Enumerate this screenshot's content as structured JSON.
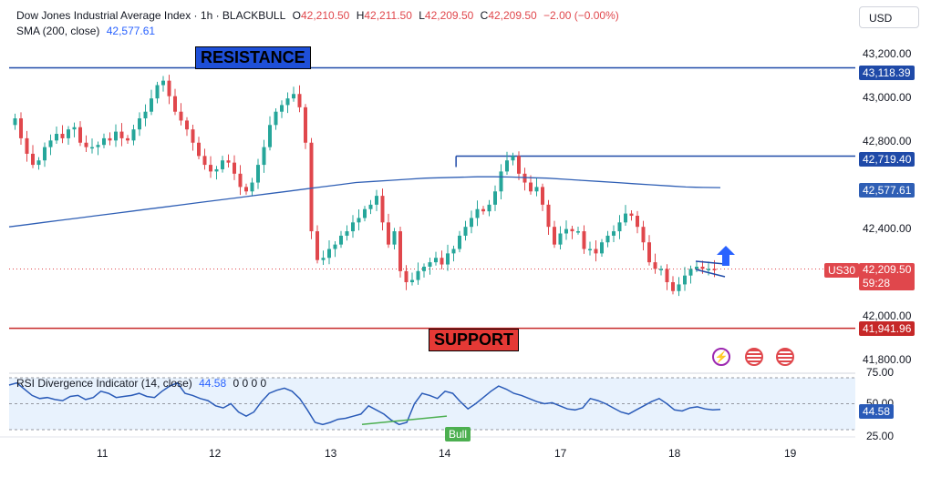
{
  "header": {
    "title": "Dow Jones Industrial Average Index · 1h · BLACKBULL",
    "o_label": "O",
    "o_value": "42,210.50",
    "h_label": "H",
    "h_value": "42,211.50",
    "l_label": "L",
    "l_value": "42,209.50",
    "c_label": "C",
    "c_value": "42,209.50",
    "change": "−2.00 (−0.00%)",
    "sma_label": "SMA (200, close)",
    "sma_value": "42,577.61"
  },
  "currency": "USD",
  "annotations": {
    "resistance": "RESISTANCE",
    "support": "SUPPORT",
    "bull": "Bull"
  },
  "price_badges": {
    "resistance": "43,118.39",
    "level_mid": "42,719.40",
    "sma": "42,577.61",
    "symbol": "US30",
    "last": "42,209.50",
    "countdown": "59:28",
    "support": "41,941.96"
  },
  "rsi": {
    "label": "RSI Divergence Indicator (14, close)",
    "value": "44.58",
    "zeros": "0 0 0 0",
    "badge": "44.58"
  },
  "colors": {
    "up": "#26a69a",
    "down": "#e0474c",
    "blue_line": "#1f4aa8",
    "sma": "#2f5fb5",
    "support": "#c62828",
    "rsi": "#2a5bb8",
    "bull": "#4caf50"
  },
  "chart_data": {
    "type": "line",
    "title": "Dow Jones Industrial Average Index · 1h · BLACKBULL",
    "yaxis_ticks": [
      "43,200.00",
      "43,000.00",
      "42,800.00",
      "42,400.00",
      "42,000.00",
      "41,800.00"
    ],
    "ylim": [
      41780,
      43260
    ],
    "xaxis_ticks": [
      "11",
      "12",
      "13",
      "14",
      "17",
      "18",
      "19"
    ],
    "levels": {
      "resistance": 43118.39,
      "mid": 42719.4,
      "support": 41941.96
    },
    "series": [
      {
        "name": "price",
        "values": [
          42860,
          42890,
          42800,
          42730,
          42680,
          42700,
          42760,
          42790,
          42820,
          42800,
          42840,
          42850,
          42780,
          42760,
          42760,
          42770,
          42800,
          42790,
          42830,
          42800,
          42790,
          42840,
          42890,
          42920,
          42980,
          43040,
          43060,
          42990,
          42920,
          42880,
          42840,
          42780,
          42720,
          42680,
          42650,
          42660,
          42700,
          42690,
          42640,
          42580,
          42560,
          42600,
          42680,
          42760,
          42860,
          42920,
          42950,
          42980,
          43000,
          42940,
          42780,
          42380,
          42250,
          42260,
          42300,
          42320,
          42360,
          42380,
          42420,
          42440,
          42480,
          42500,
          42540,
          42420,
          42320,
          42380,
          42200,
          42150,
          42160,
          42200,
          42220,
          42240,
          42260,
          42230,
          42280,
          42300,
          42360,
          42400,
          42440,
          42480,
          42470,
          42500,
          42560,
          42650,
          42700,
          42720,
          42640,
          42600,
          42560,
          42580,
          42500,
          42400,
          42320,
          42370,
          42390,
          42380,
          42380,
          42300,
          42300,
          42280,
          42330,
          42360,
          42380,
          42420,
          42460,
          42450,
          42400,
          42330,
          42240,
          42210,
          42210,
          42150,
          42110,
          42140,
          42180,
          42210,
          42220,
          42210,
          42210,
          42209
        ]
      },
      {
        "name": "SMA (200, close)",
        "values": [
          42400,
          42410,
          42420,
          42430,
          42440,
          42450,
          42460,
          42470,
          42480,
          42490,
          42500,
          42510,
          42520,
          42530,
          42540,
          42550,
          42560,
          42570,
          42580,
          42590,
          42600,
          42605,
          42610,
          42615,
          42620,
          42622,
          42624,
          42626,
          42626,
          42625,
          42622,
          42620,
          42615,
          42610,
          42605,
          42600,
          42595,
          42590,
          42585,
          42580,
          42578,
          42577
        ]
      }
    ],
    "rsi_ylim": [
      25,
      75
    ],
    "rsi_ticks": [
      "75.00",
      "50.00",
      "25.00"
    ],
    "rsi_values": [
      68,
      70,
      64,
      58,
      55,
      56,
      54,
      53,
      57,
      58,
      54,
      56,
      62,
      60,
      56,
      57,
      58,
      60,
      57,
      56,
      62,
      67,
      70,
      60,
      58,
      55,
      53,
      48,
      46,
      50,
      42,
      38,
      42,
      52,
      60,
      63,
      65,
      62,
      55,
      44,
      32,
      30,
      32,
      35,
      36,
      38,
      40,
      48,
      44,
      40,
      34,
      30,
      32,
      50,
      60,
      58,
      55,
      62,
      60,
      52,
      45,
      50,
      56,
      62,
      67,
      64,
      60,
      58,
      55,
      52,
      50,
      51,
      48,
      45,
      44,
      46,
      55,
      53,
      50,
      46,
      42,
      40,
      44,
      48,
      52,
      55,
      50,
      44,
      43,
      46,
      47,
      45,
      44,
      44.58
    ]
  }
}
